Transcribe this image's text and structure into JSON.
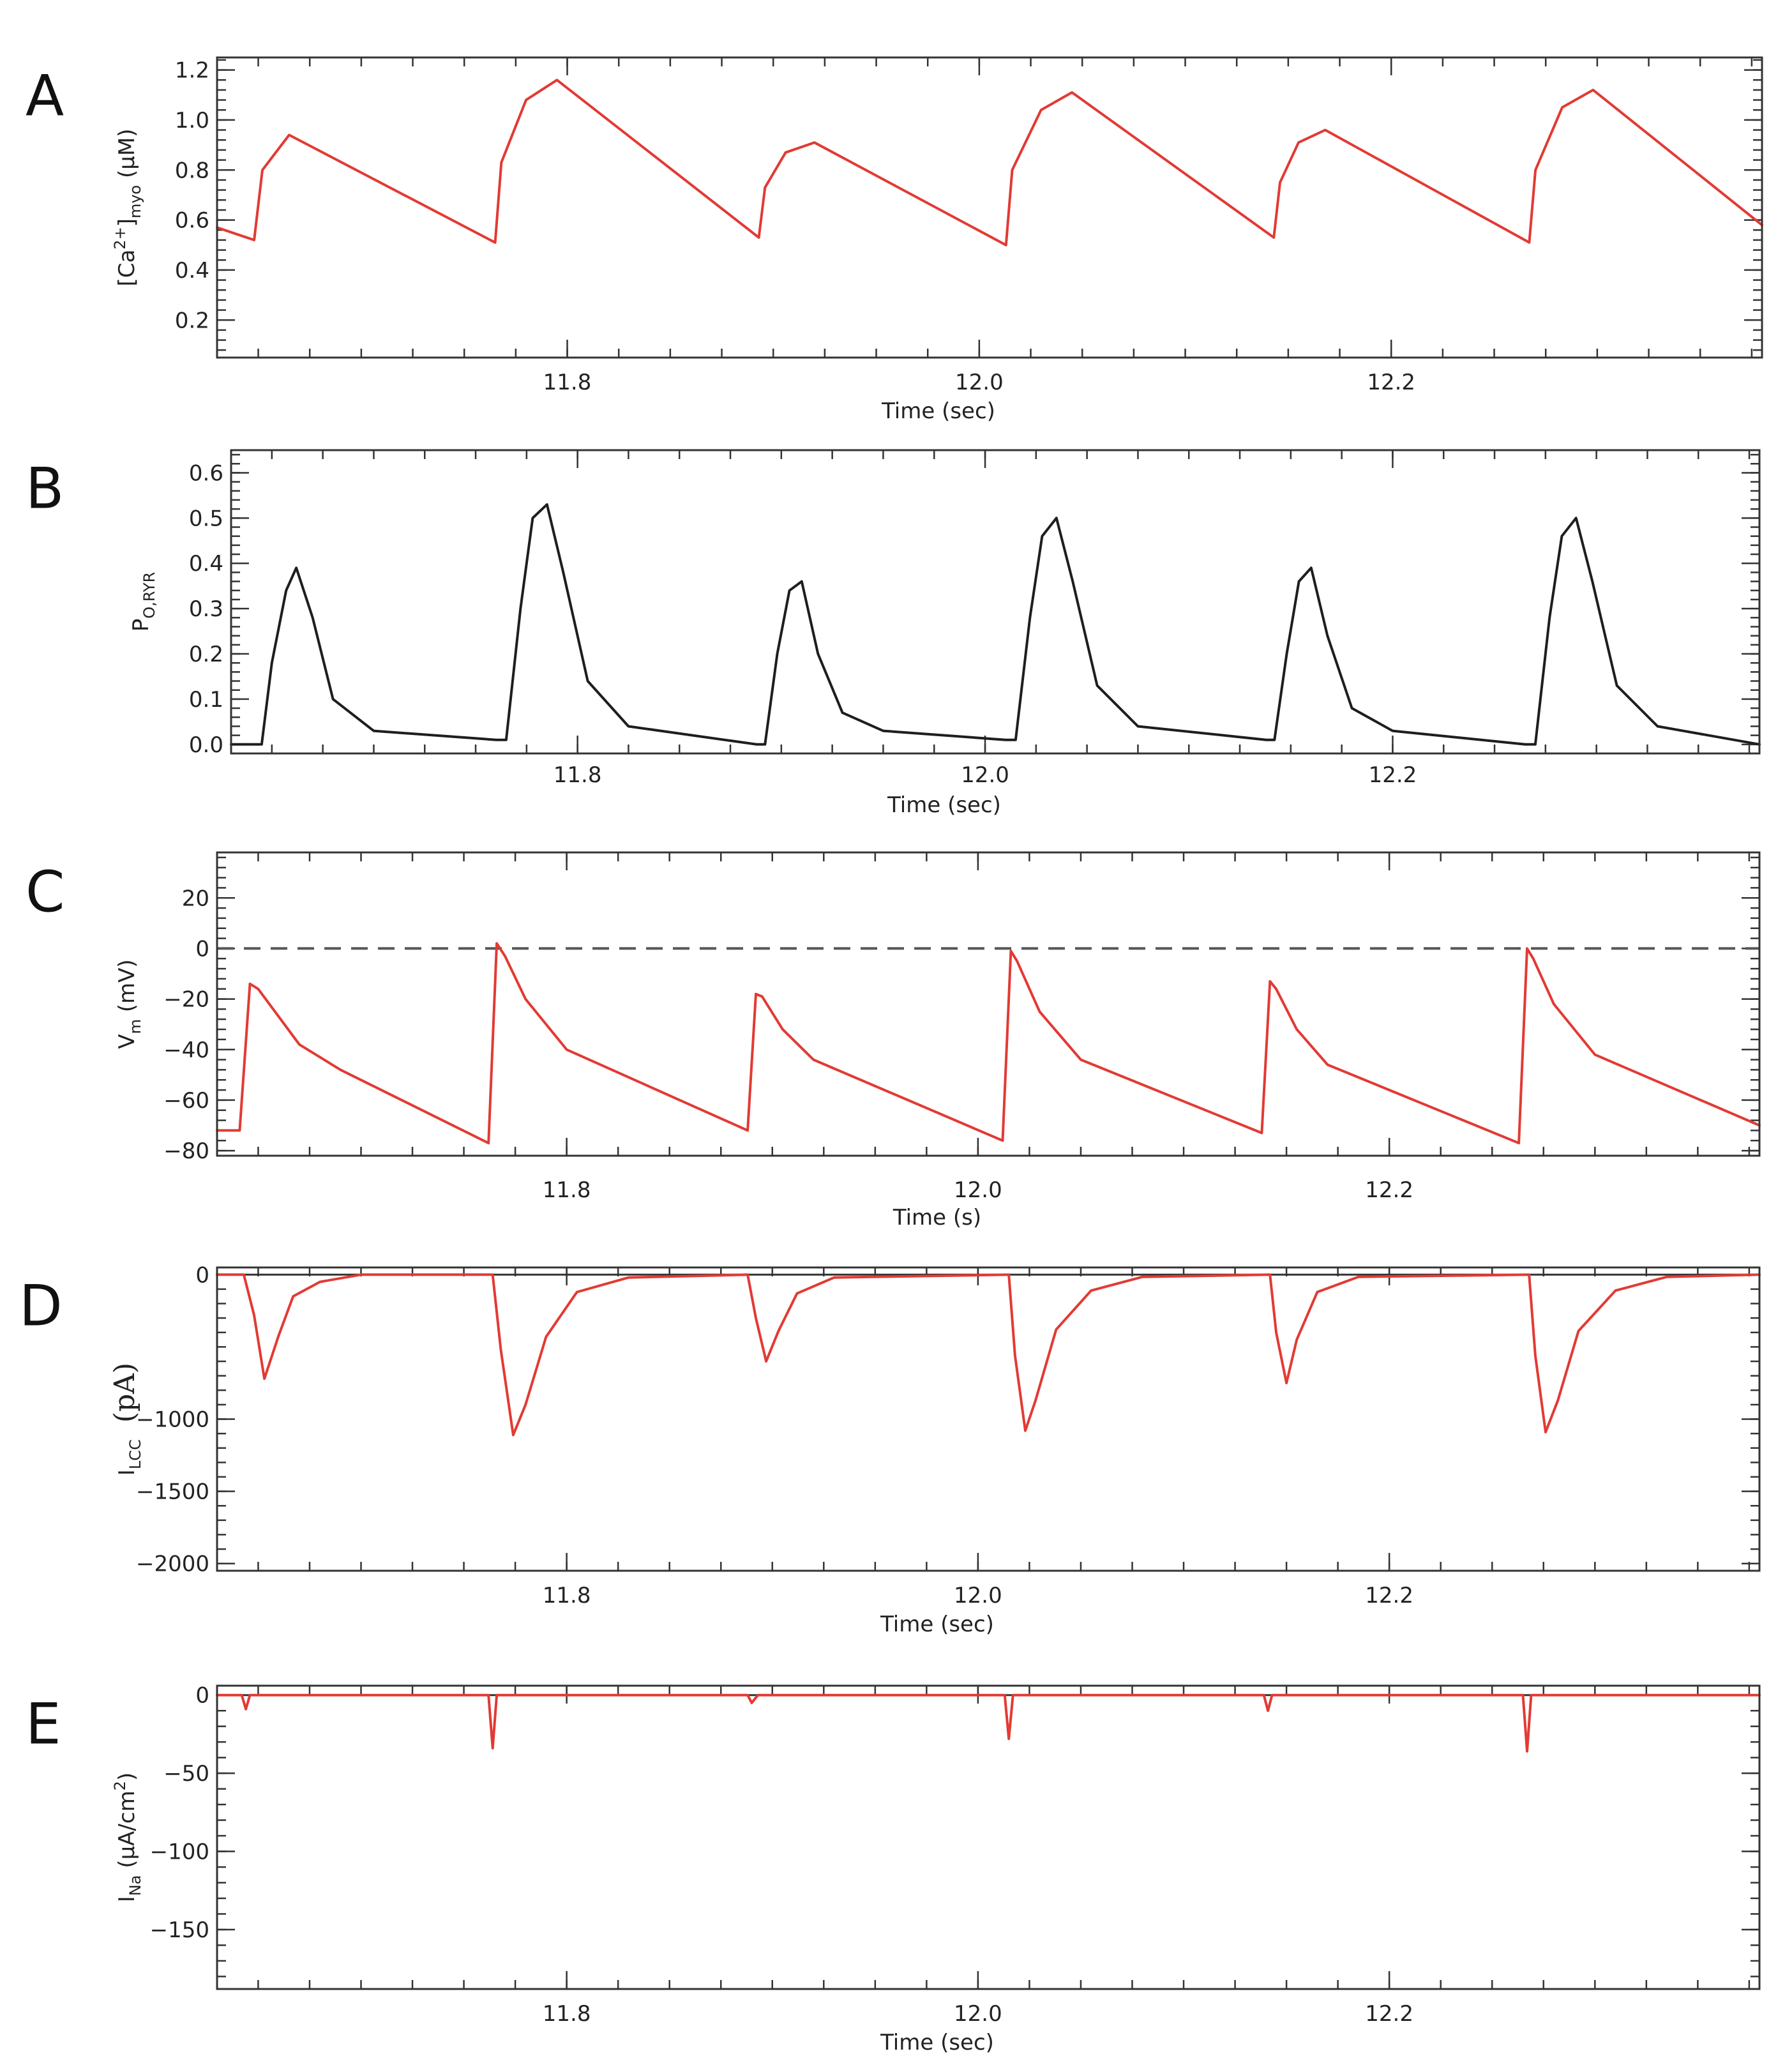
{
  "colors": {
    "red": "#e23a34",
    "black": "#1e1e1e",
    "dash": "#555555"
  },
  "chart_data": [
    {
      "panel": "A",
      "type": "line",
      "xlabel": "Time (sec)",
      "ylabel_main": "[Ca",
      "ylabel_sup": "2+",
      "ylabel_mid": "]",
      "ylabel_sub": "myo",
      "ylabel_unit": " (μM)",
      "xlim": [
        11.63,
        12.38
      ],
      "ylim": [
        0.05,
        1.25
      ],
      "yticks": [
        0.2,
        0.4,
        0.6,
        0.8,
        1.0,
        1.2
      ],
      "ytick_labels": [
        "0.2",
        "0.4",
        "0.6",
        "0.8",
        "1.0",
        "1.2"
      ],
      "xticks": [
        11.8,
        12.0,
        12.2
      ],
      "xtick_labels": [
        "11.8",
        "12.0",
        "12.2"
      ],
      "color": "red",
      "series": [
        {
          "name": "[Ca2+]myo",
          "x": [
            11.63,
            11.648,
            11.652,
            11.665,
            11.765,
            11.768,
            11.78,
            11.795,
            11.893,
            11.896,
            11.906,
            11.92,
            12.013,
            12.016,
            12.03,
            12.045,
            12.143,
            12.146,
            12.155,
            12.168,
            12.267,
            12.27,
            12.283,
            12.298,
            12.38
          ],
          "y": [
            0.57,
            0.52,
            0.8,
            0.94,
            0.51,
            0.83,
            1.08,
            1.16,
            0.53,
            0.73,
            0.87,
            0.91,
            0.5,
            0.8,
            1.04,
            1.11,
            0.53,
            0.75,
            0.91,
            0.96,
            0.51,
            0.8,
            1.05,
            1.12,
            0.58
          ]
        }
      ]
    },
    {
      "panel": "B",
      "type": "line",
      "xlabel": "Time (sec)",
      "ylabel_main": "P",
      "ylabel_sub": "O,RYR",
      "xlim": [
        11.63,
        12.38
      ],
      "ylim": [
        -0.02,
        0.65
      ],
      "yticks": [
        0.0,
        0.1,
        0.2,
        0.3,
        0.4,
        0.5,
        0.6
      ],
      "ytick_labels": [
        "0.0",
        "0.1",
        "0.2",
        "0.3",
        "0.4",
        "0.5",
        "0.6"
      ],
      "xticks": [
        11.8,
        12.0,
        12.2
      ],
      "xtick_labels": [
        "11.8",
        "12.0",
        "12.2"
      ],
      "color": "black",
      "series": [
        {
          "name": "P_O,RYR",
          "x": [
            11.63,
            11.645,
            11.65,
            11.657,
            11.662,
            11.67,
            11.68,
            11.7,
            11.76,
            11.765,
            11.772,
            11.778,
            11.785,
            11.793,
            11.805,
            11.825,
            11.888,
            11.892,
            11.898,
            11.904,
            11.91,
            11.918,
            11.93,
            11.95,
            12.01,
            12.015,
            12.022,
            12.028,
            12.035,
            12.043,
            12.055,
            12.075,
            12.138,
            12.142,
            12.148,
            12.154,
            12.16,
            12.168,
            12.18,
            12.2,
            12.265,
            12.27,
            12.277,
            12.283,
            12.29,
            12.298,
            12.31,
            12.33,
            12.38
          ],
          "y": [
            0.0,
            0.0,
            0.18,
            0.34,
            0.39,
            0.28,
            0.1,
            0.03,
            0.01,
            0.01,
            0.3,
            0.5,
            0.53,
            0.38,
            0.14,
            0.04,
            0.0,
            0.0,
            0.2,
            0.34,
            0.36,
            0.2,
            0.07,
            0.03,
            0.01,
            0.01,
            0.28,
            0.46,
            0.5,
            0.36,
            0.13,
            0.04,
            0.01,
            0.01,
            0.2,
            0.36,
            0.39,
            0.24,
            0.08,
            0.03,
            0.0,
            0.0,
            0.28,
            0.46,
            0.5,
            0.36,
            0.13,
            0.04,
            0.0
          ]
        }
      ]
    },
    {
      "panel": "C",
      "type": "line",
      "xlabel": "Time (s)",
      "ylabel_main": "V",
      "ylabel_sub": "m",
      "ylabel_unit": " (mV)",
      "xlim": [
        11.63,
        12.38
      ],
      "ylim": [
        -82,
        38
      ],
      "yticks": [
        -80,
        -60,
        -40,
        -20,
        0,
        20
      ],
      "ytick_labels": [
        "−80",
        "−60",
        "−40",
        "−20",
        "0",
        "20"
      ],
      "xticks": [
        11.8,
        12.0,
        12.2
      ],
      "xtick_labels": [
        "11.8",
        "12.0",
        "12.2"
      ],
      "reference_line": 0,
      "color": "red",
      "series": [
        {
          "name": "Vm",
          "x": [
            11.63,
            11.641,
            11.646,
            11.65,
            11.67,
            11.69,
            11.762,
            11.766,
            11.77,
            11.78,
            11.8,
            11.888,
            11.892,
            11.895,
            11.905,
            11.92,
            12.012,
            12.016,
            12.019,
            12.03,
            12.05,
            12.138,
            12.142,
            12.145,
            12.155,
            12.17,
            12.263,
            12.267,
            12.27,
            12.28,
            12.3,
            12.38
          ],
          "y": [
            -72,
            -72,
            -14,
            -16,
            -38,
            -48,
            -77,
            2,
            -3,
            -20,
            -40,
            -72,
            -18,
            -19,
            -32,
            -44,
            -76,
            -1,
            -5,
            -25,
            -44,
            -73,
            -13,
            -16,
            -32,
            -46,
            -77,
            0,
            -4,
            -22,
            -42,
            -70
          ]
        }
      ]
    },
    {
      "panel": "D",
      "type": "line",
      "xlabel": "Time (sec)",
      "ylabel_main": "I",
      "ylabel_sub": "LCC",
      "ylabel_unit": "(pA)",
      "xlim": [
        11.63,
        12.38
      ],
      "ylim": [
        -2050,
        50
      ],
      "yticks": [
        -2000,
        -1500,
        -1000,
        0
      ],
      "ytick_labels": [
        "−2000",
        "−1500",
        "−1000",
        "0"
      ],
      "xticks": [
        11.8,
        12.0,
        12.2
      ],
      "xtick_labels": [
        "11.8",
        "12.0",
        "12.2"
      ],
      "color": "red",
      "series": [
        {
          "name": "ILCC",
          "x": [
            11.63,
            11.643,
            11.648,
            11.653,
            11.66,
            11.667,
            11.68,
            11.7,
            11.764,
            11.768,
            11.774,
            11.78,
            11.79,
            11.805,
            11.83,
            11.888,
            11.892,
            11.897,
            11.903,
            11.912,
            11.93,
            12.015,
            12.018,
            12.023,
            12.028,
            12.038,
            12.055,
            12.08,
            12.142,
            12.145,
            12.15,
            12.155,
            12.165,
            12.185,
            12.268,
            12.271,
            12.276,
            12.282,
            12.292,
            12.31,
            12.335,
            12.38
          ],
          "y": [
            0,
            0,
            -280,
            -720,
            -420,
            -150,
            -50,
            0,
            0,
            -520,
            -1110,
            -900,
            -430,
            -120,
            -20,
            0,
            -300,
            -600,
            -390,
            -130,
            -20,
            0,
            -560,
            -1080,
            -870,
            -380,
            -110,
            -15,
            0,
            -400,
            -750,
            -450,
            -120,
            -15,
            0,
            -560,
            -1090,
            -870,
            -390,
            -110,
            -15,
            0
          ]
        }
      ]
    },
    {
      "panel": "E",
      "type": "line",
      "xlabel": "Time (sec)",
      "ylabel_main": "I",
      "ylabel_sub": "Na",
      "ylabel_unit": " (μA/cm",
      "ylabel_sup": "2",
      "ylabel_end": ")",
      "xlim": [
        11.63,
        12.38
      ],
      "ylim": [
        -188,
        6
      ],
      "yticks": [
        -150,
        -100,
        -50,
        0
      ],
      "ytick_labels": [
        "−150",
        "−100",
        "−50",
        "0"
      ],
      "xticks": [
        11.8,
        12.0,
        12.2
      ],
      "xtick_labels": [
        "11.8",
        "12.0",
        "12.2"
      ],
      "color": "red",
      "series": [
        {
          "name": "INa",
          "x": [
            11.63,
            11.642,
            11.644,
            11.646,
            11.762,
            11.764,
            11.766,
            11.888,
            11.89,
            11.893,
            12.013,
            12.015,
            12.017,
            12.139,
            12.141,
            12.143,
            12.265,
            12.267,
            12.269,
            12.38
          ],
          "y": [
            0,
            0,
            -9,
            0,
            0,
            -34,
            0,
            0,
            -5,
            0,
            0,
            -28,
            0,
            0,
            -10,
            0,
            0,
            -36,
            0,
            0
          ]
        }
      ]
    }
  ]
}
